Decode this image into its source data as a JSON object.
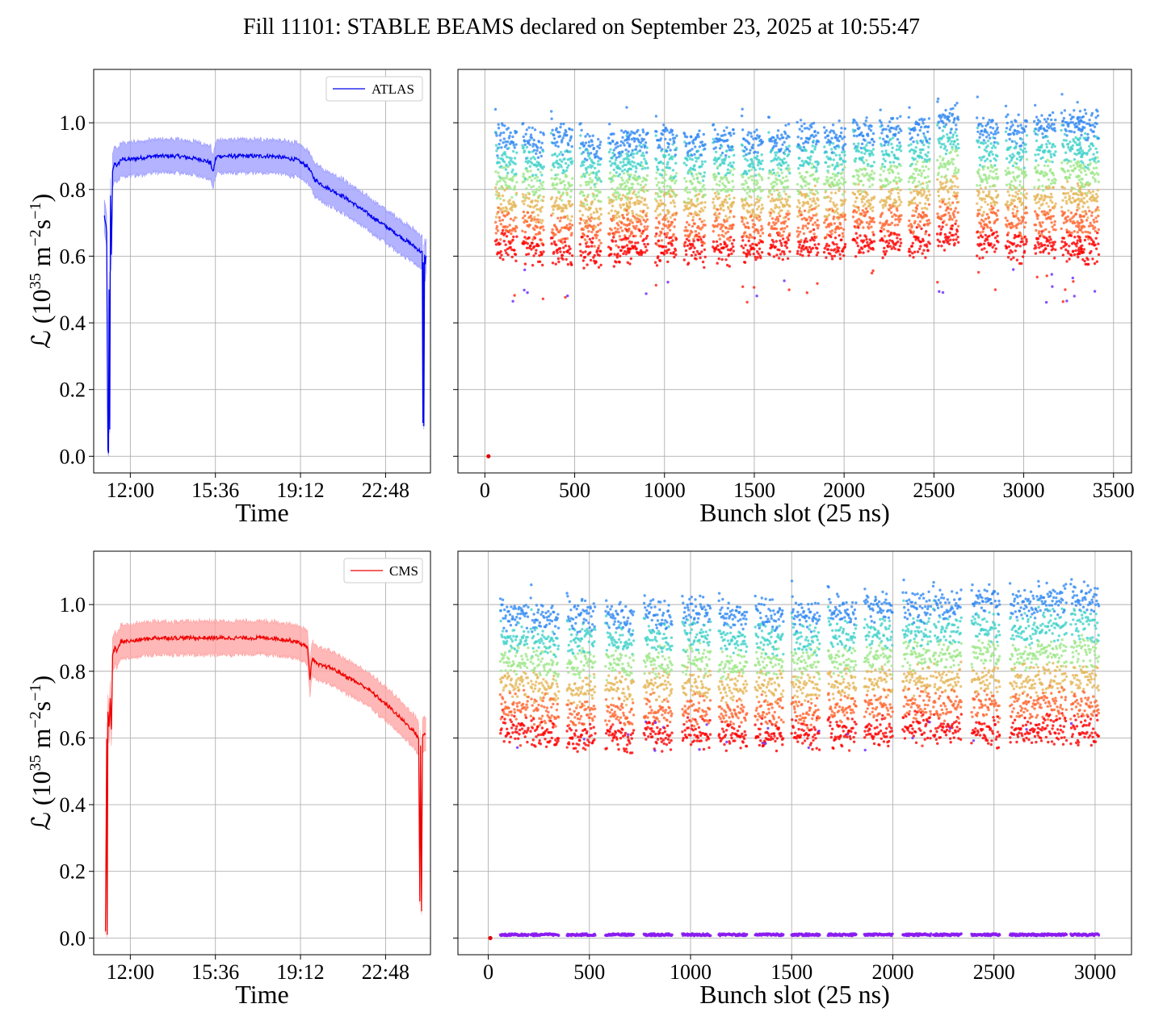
{
  "figure": {
    "title": "Fill 11101: STABLE BEAMS declared on September 23, 2025 at 10:55:47"
  },
  "colors": {
    "atlas": "#0000ee",
    "atlas_band": "#9999ff",
    "cms": "#ee0000",
    "cms_band": "#ffa0a0",
    "grid": "#b0b0b0"
  },
  "chart_data": [
    {
      "id": "atlas_time",
      "type": "line",
      "xlabel": "Time",
      "ylabel_main": "ℒ (10",
      "ylabel_exp1": "35",
      "ylabel_mid": " m",
      "ylabel_exp2": "−2",
      "ylabel_mid2": "s",
      "ylabel_exp3": "−1",
      "ylabel_end": ")",
      "x_ticks": [
        "12:00",
        "15:36",
        "19:12",
        "22:48"
      ],
      "x_tick_hours": [
        12.0,
        15.6,
        19.2,
        22.8
      ],
      "xlim_hours": [
        10.45,
        24.7
      ],
      "y_ticks": [
        "0.0",
        "0.2",
        "0.4",
        "0.6",
        "0.8",
        "1.0"
      ],
      "ylim": [
        -0.05,
        1.16
      ],
      "legend": "ATLAS",
      "legend_position": "top-right",
      "grid": true,
      "series": [
        {
          "name": "ATLAS",
          "x_hours": [
            10.9,
            10.95,
            11.0,
            11.05,
            11.08,
            11.1,
            11.13,
            11.16,
            11.2,
            11.25,
            11.3,
            11.35,
            11.45,
            11.6,
            12.0,
            13.0,
            14.0,
            15.0,
            15.4,
            15.5,
            15.6,
            15.7,
            16.0,
            17.0,
            18.0,
            19.0,
            19.5,
            19.8,
            20.2,
            21.0,
            22.0,
            23.0,
            24.0,
            24.35,
            24.38,
            24.4,
            24.42,
            24.45,
            24.48,
            24.52
          ],
          "y": [
            0.72,
            0.7,
            0.67,
            0.02,
            0.01,
            0.5,
            0.08,
            0.78,
            0.6,
            0.85,
            0.87,
            0.88,
            0.87,
            0.89,
            0.89,
            0.9,
            0.9,
            0.89,
            0.88,
            0.85,
            0.89,
            0.9,
            0.9,
            0.9,
            0.9,
            0.89,
            0.87,
            0.83,
            0.81,
            0.78,
            0.73,
            0.68,
            0.63,
            0.61,
            0.1,
            0.58,
            0.09,
            0.6,
            0.58,
            0.6
          ],
          "band_halfwidth": 0.05
        }
      ]
    },
    {
      "id": "atlas_bunch",
      "type": "scatter",
      "xlabel": "Bunch slot (25 ns)",
      "x_ticks": [
        0,
        500,
        1000,
        1500,
        2000,
        2500,
        3000,
        3500
      ],
      "xlim": [
        -150,
        3600
      ],
      "y_ticks": [
        0.0,
        0.2,
        0.4,
        0.6,
        0.8,
        1.0
      ],
      "ylim": [
        -0.05,
        1.16
      ],
      "grid": true,
      "colormap": "rainbow",
      "train_starts": [
        60,
        210,
        370,
        530,
        690,
        790,
        950,
        1110,
        1270,
        1430,
        1580,
        1740,
        1890,
        2050,
        2200,
        2360,
        2520,
        2740,
        2900,
        3060,
        3210,
        3300
      ],
      "train_length": 120,
      "level_max": [
        0.95,
        0.94,
        0.95,
        0.93,
        0.94,
        0.95,
        0.95,
        0.94,
        0.95,
        0.94,
        0.95,
        0.96,
        0.96,
        0.97,
        0.98,
        0.98,
        1.02,
        0.98,
        0.98,
        0.99,
        1.0,
        0.99
      ],
      "level_min": [
        0.63,
        0.62,
        0.61,
        0.61,
        0.62,
        0.63,
        0.62,
        0.62,
        0.62,
        0.62,
        0.62,
        0.63,
        0.63,
        0.64,
        0.64,
        0.64,
        0.66,
        0.64,
        0.63,
        0.63,
        0.63,
        0.62
      ],
      "outlier_low": 0.46,
      "empty_slot_point": {
        "x": 20,
        "y": 0.0
      }
    },
    {
      "id": "cms_time",
      "type": "line",
      "xlabel": "Time",
      "ylabel_main": "ℒ (10",
      "ylabel_exp1": "35",
      "ylabel_mid": " m",
      "ylabel_exp2": "−2",
      "ylabel_mid2": "s",
      "ylabel_exp3": "−1",
      "ylabel_end": ")",
      "x_ticks": [
        "12:00",
        "15:36",
        "19:12",
        "22:48"
      ],
      "x_tick_hours": [
        12.0,
        15.6,
        19.2,
        22.8
      ],
      "xlim_hours": [
        10.45,
        24.7
      ],
      "y_ticks": [
        "0.0",
        "0.2",
        "0.4",
        "0.6",
        "0.8",
        "1.0"
      ],
      "ylim": [
        -0.05,
        1.16
      ],
      "legend": "CMS",
      "legend_position": "top-right",
      "grid": true,
      "series": [
        {
          "name": "CMS",
          "x_hours": [
            10.95,
            11.0,
            11.02,
            11.05,
            11.1,
            11.15,
            11.2,
            11.25,
            11.3,
            11.35,
            11.45,
            11.6,
            12.0,
            13.0,
            14.0,
            15.0,
            16.0,
            17.0,
            18.0,
            19.0,
            19.3,
            19.5,
            19.6,
            19.7,
            19.9,
            20.5,
            21.0,
            22.0,
            23.0,
            24.0,
            24.2,
            24.25,
            24.28,
            24.32,
            24.36,
            24.42,
            24.5
          ],
          "y": [
            0.02,
            0.6,
            0.01,
            0.68,
            0.63,
            0.72,
            0.62,
            0.85,
            0.86,
            0.87,
            0.86,
            0.89,
            0.89,
            0.9,
            0.9,
            0.9,
            0.9,
            0.9,
            0.9,
            0.89,
            0.88,
            0.87,
            0.78,
            0.84,
            0.82,
            0.81,
            0.79,
            0.75,
            0.69,
            0.62,
            0.6,
            0.11,
            0.58,
            0.08,
            0.6,
            0.61,
            0.61
          ],
          "band_halfwidth": 0.05
        }
      ]
    },
    {
      "id": "cms_bunch",
      "type": "scatter",
      "xlabel": "Bunch slot (25 ns)",
      "x_ticks": [
        0,
        500,
        1000,
        1500,
        2000,
        2500,
        3000
      ],
      "xlim": [
        -150,
        3180
      ],
      "y_ticks": [
        0.0,
        0.2,
        0.4,
        0.6,
        0.8,
        1.0
      ],
      "ylim": [
        -0.05,
        1.16
      ],
      "grid": true,
      "colormap": "rainbow",
      "train_starts": [
        60,
        210,
        390,
        580,
        770,
        960,
        1140,
        1320,
        1500,
        1680,
        1860,
        2050,
        2200,
        2390,
        2580,
        2720,
        2880
      ],
      "train_length": 140,
      "level_max": [
        0.97,
        0.96,
        0.97,
        0.96,
        0.97,
        0.98,
        0.97,
        0.97,
        0.97,
        0.98,
        0.99,
        0.99,
        1.0,
        1.01,
        1.0,
        1.02,
        1.02
      ],
      "level_min": [
        0.63,
        0.61,
        0.6,
        0.6,
        0.61,
        0.61,
        0.61,
        0.61,
        0.61,
        0.62,
        0.62,
        0.63,
        0.63,
        0.62,
        0.62,
        0.63,
        0.62
      ],
      "outlier_low": 0.55,
      "empty_slot_point": {
        "x": 10,
        "y": 0.0
      },
      "low_row_y": 0.01
    }
  ]
}
